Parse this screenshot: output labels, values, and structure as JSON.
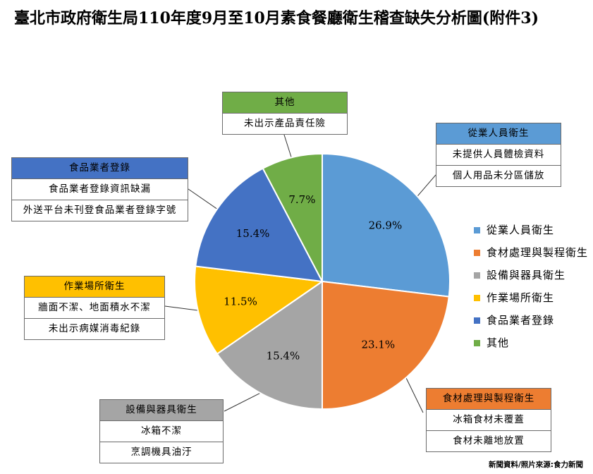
{
  "title": "臺北市政府衛生局110年度9月至10月素食餐廳衛生稽查缺失分析圖(附件3)",
  "source": "新聞資料/照片來源:食力新聞",
  "chart_data": {
    "type": "pie",
    "categories": [
      "從業人員衛生",
      "食材處理與製程衛生",
      "設備與器具衛生",
      "作業場所衛生",
      "食品業者登錄",
      "其他"
    ],
    "values": [
      26.9,
      23.1,
      15.4,
      11.5,
      15.4,
      7.7
    ],
    "labels": [
      "26.9%",
      "23.1%",
      "15.4%",
      "11.5%",
      "15.4%",
      "7.7%"
    ],
    "colors": [
      "#5b9bd5",
      "#ed7d31",
      "#a5a5a5",
      "#ffc000",
      "#4472c4",
      "#70ad47"
    ],
    "legend_position": "right"
  },
  "callouts": [
    {
      "title": "從業人員衛生",
      "color": "#5b9bd5",
      "items": [
        "未提供人員體檢資料",
        "個人用品未分區儲放"
      ]
    },
    {
      "title": "食材處理與製程衛生",
      "color": "#ed7d31",
      "items": [
        "冰箱食材未覆蓋",
        "食材未離地放置"
      ]
    },
    {
      "title": "設備與器具衛生",
      "color": "#a5a5a5",
      "items": [
        "冰箱不潔",
        "烹調機具油汙"
      ]
    },
    {
      "title": "作業場所衛生",
      "color": "#ffc000",
      "items": [
        "牆面不潔、地面積水不潔",
        "未出示病媒消毒紀錄"
      ]
    },
    {
      "title": "食品業者登錄",
      "color": "#4472c4",
      "items": [
        "食品業者登錄資訊缺漏",
        "外送平台未刊登食品業者登錄字號"
      ]
    },
    {
      "title": "其他",
      "color": "#70ad47",
      "items": [
        "未出示產品責任險"
      ]
    }
  ]
}
